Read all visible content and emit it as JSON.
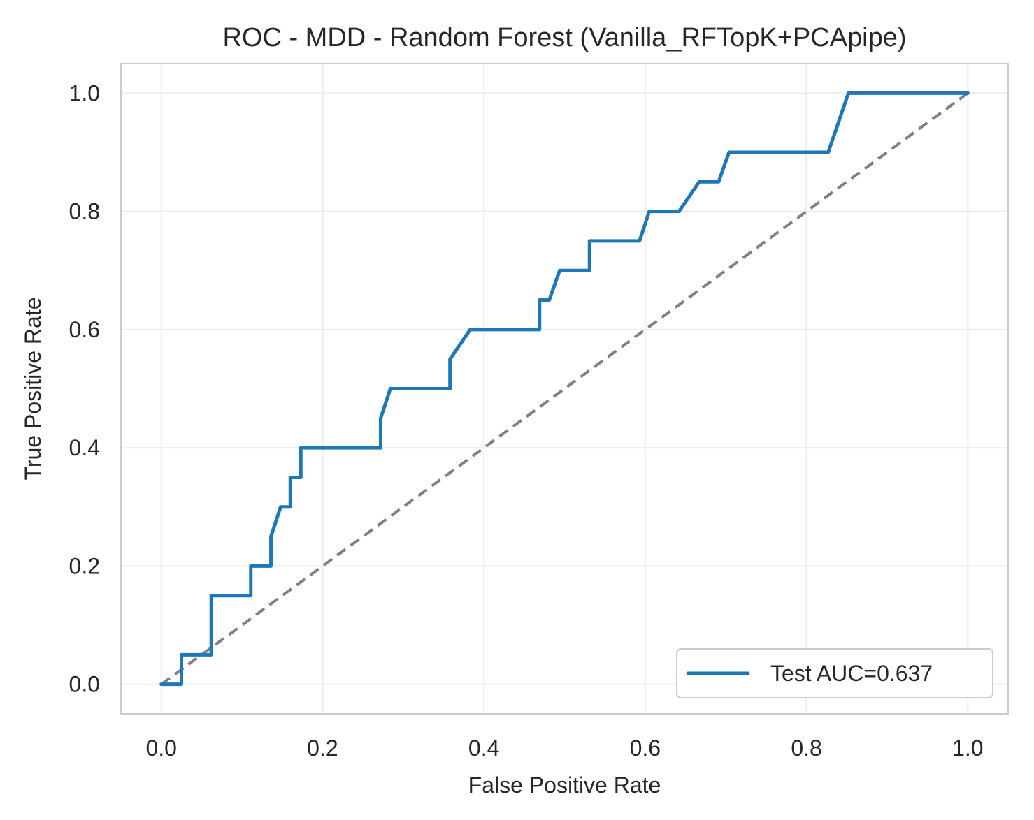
{
  "chart_data": {
    "type": "line",
    "title": "ROC - MDD - Random Forest (Vanilla_RFTopK+PCApipe)",
    "xlabel": "False Positive Rate",
    "ylabel": "True Positive Rate",
    "xlim": [
      -0.05,
      1.05
    ],
    "ylim": [
      -0.05,
      1.05
    ],
    "xticks": [
      "0.0",
      "0.2",
      "0.4",
      "0.6",
      "0.8",
      "1.0"
    ],
    "yticks": [
      "0.0",
      "0.2",
      "0.4",
      "0.6",
      "0.8",
      "1.0"
    ],
    "grid": true,
    "legend_position": "lower-right",
    "series": [
      {
        "name": "Test AUC=0.637",
        "color": "#1f77b4",
        "style": "solid",
        "points": [
          [
            0.0,
            0.0
          ],
          [
            0.025,
            0.0
          ],
          [
            0.025,
            0.05
          ],
          [
            0.062,
            0.05
          ],
          [
            0.062,
            0.15
          ],
          [
            0.111,
            0.15
          ],
          [
            0.111,
            0.2
          ],
          [
            0.136,
            0.2
          ],
          [
            0.136,
            0.25
          ],
          [
            0.148,
            0.3
          ],
          [
            0.16,
            0.3
          ],
          [
            0.16,
            0.35
          ],
          [
            0.173,
            0.35
          ],
          [
            0.173,
            0.4
          ],
          [
            0.272,
            0.4
          ],
          [
            0.272,
            0.45
          ],
          [
            0.284,
            0.5
          ],
          [
            0.358,
            0.5
          ],
          [
            0.358,
            0.55
          ],
          [
            0.383,
            0.6
          ],
          [
            0.469,
            0.6
          ],
          [
            0.469,
            0.65
          ],
          [
            0.481,
            0.65
          ],
          [
            0.494,
            0.7
          ],
          [
            0.531,
            0.7
          ],
          [
            0.531,
            0.75
          ],
          [
            0.593,
            0.75
          ],
          [
            0.605,
            0.8
          ],
          [
            0.642,
            0.8
          ],
          [
            0.667,
            0.85
          ],
          [
            0.691,
            0.85
          ],
          [
            0.704,
            0.9
          ],
          [
            0.827,
            0.9
          ],
          [
            0.852,
            1.0
          ],
          [
            1.0,
            1.0
          ]
        ]
      },
      {
        "name": "",
        "color": "#808080",
        "style": "dashed",
        "points": [
          [
            0.0,
            0.0
          ],
          [
            1.0,
            1.0
          ]
        ]
      }
    ]
  }
}
